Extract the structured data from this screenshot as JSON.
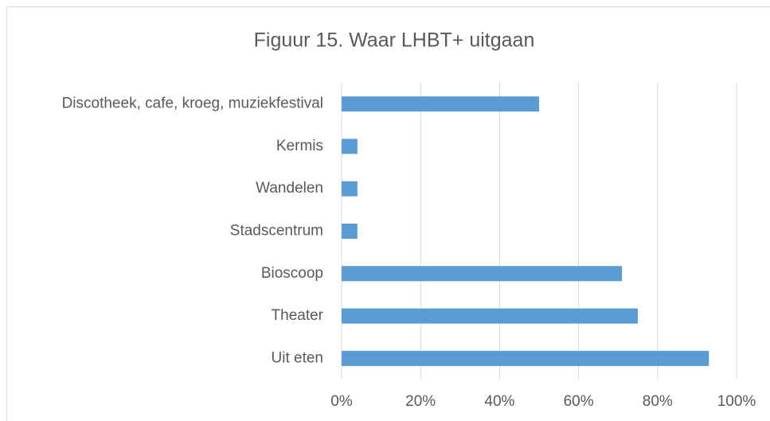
{
  "chart_data": {
    "type": "bar",
    "orientation": "horizontal",
    "title": "Figuur 15.  Waar LHBT+ uitgaan",
    "categories": [
      "Discotheek, cafe, kroeg, muziekfestival",
      "Kermis",
      "Wandelen",
      "Stadscentrum",
      "Bioscoop",
      "Theater",
      "Uit eten"
    ],
    "values": [
      50,
      4,
      4,
      4,
      71,
      75,
      93
    ],
    "color": "#5b9bd5",
    "xlim": [
      0,
      100
    ],
    "xticks": [
      {
        "value": 0,
        "label": "0%"
      },
      {
        "value": 20,
        "label": "20%"
      },
      {
        "value": 40,
        "label": "40%"
      },
      {
        "value": 60,
        "label": "60%"
      },
      {
        "value": 80,
        "label": "80%"
      },
      {
        "value": 100,
        "label": "100%"
      }
    ],
    "grid": true
  }
}
